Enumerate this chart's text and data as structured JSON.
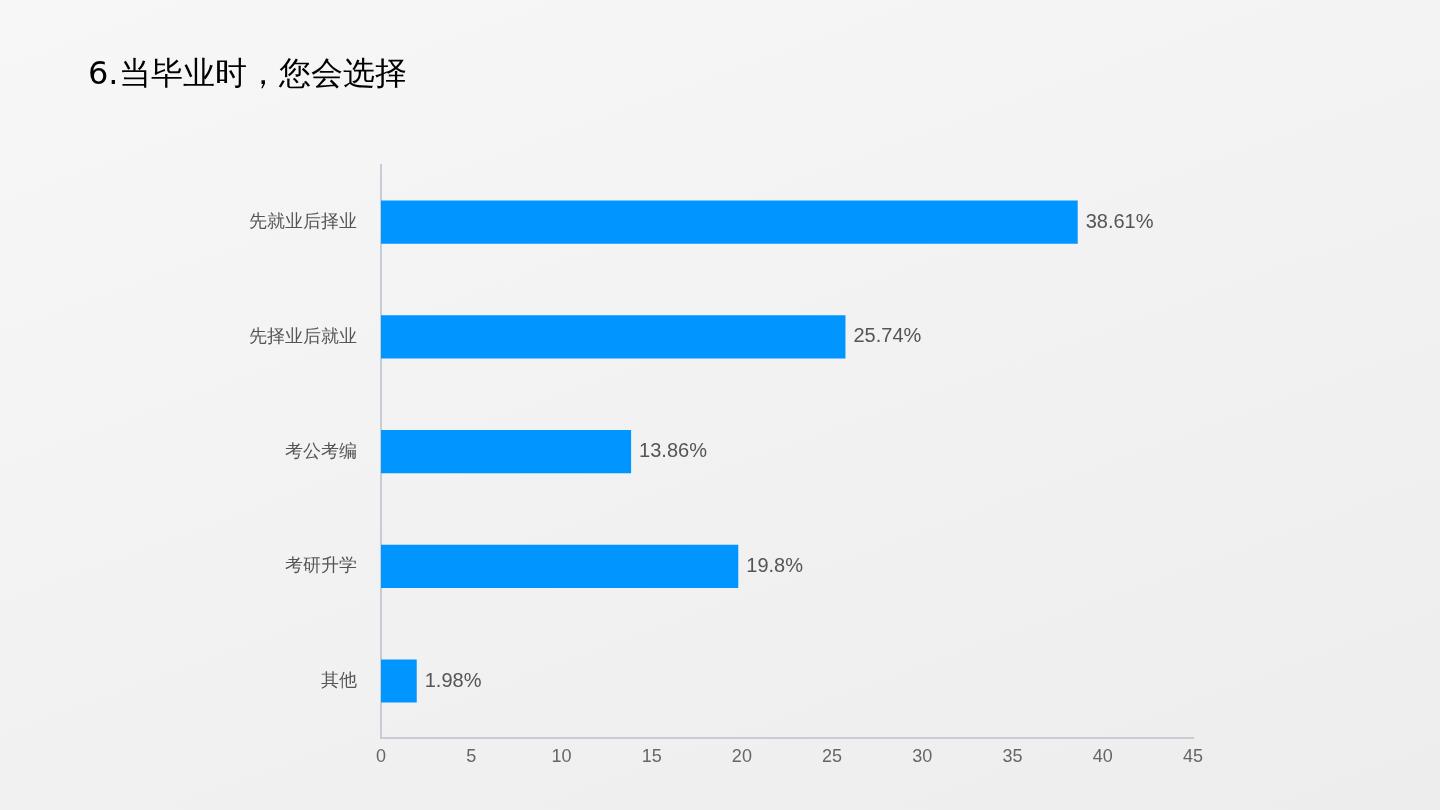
{
  "chart_data": {
    "type": "bar",
    "orientation": "horizontal",
    "title": "6.当毕业时，您会选择",
    "categories": [
      "先就业后择业",
      "先择业后就业",
      "考公考编",
      "考研升学",
      "其他"
    ],
    "values": [
      38.61,
      25.74,
      13.86,
      19.8,
      1.98
    ],
    "value_labels": [
      "38.61%",
      "25.74%",
      "13.86%",
      "19.8%",
      "1.98%"
    ],
    "color": "#0095ff",
    "xlim": [
      0,
      45
    ],
    "xticks": [
      0,
      5,
      10,
      15,
      20,
      25,
      30,
      35,
      40,
      45
    ],
    "grid": false,
    "legend": false
  }
}
